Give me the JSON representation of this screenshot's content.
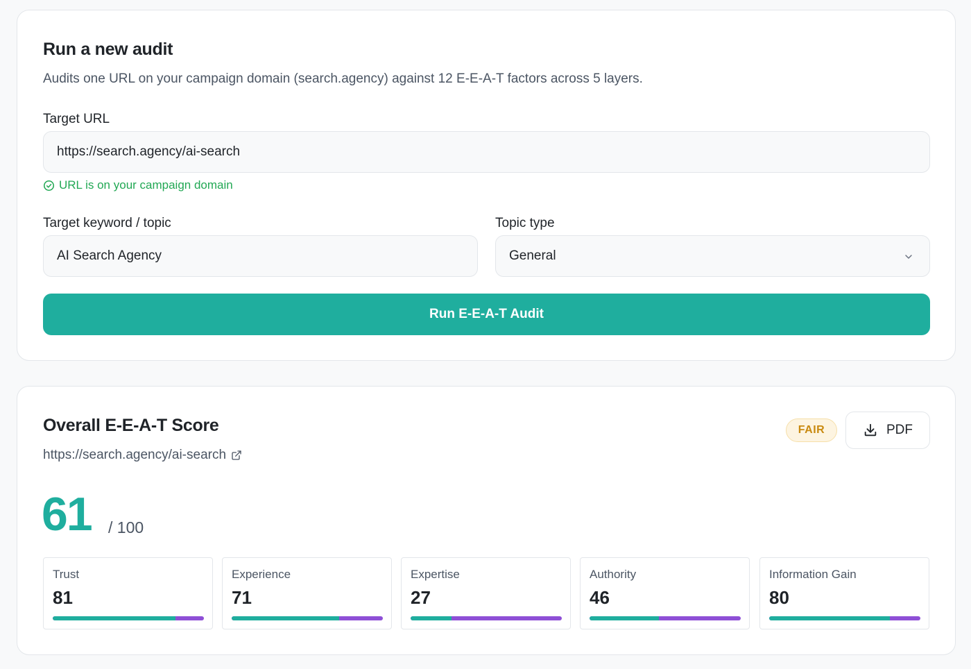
{
  "audit": {
    "title": "Run a new audit",
    "subtitle": "Audits one URL on your campaign domain (search.agency) against 12 E-E-A-T factors across 5 layers.",
    "target_url_label": "Target URL",
    "target_url_value": "https://search.agency/ai-search",
    "url_status": "URL is on your campaign domain",
    "keyword_label": "Target keyword / topic",
    "keyword_value": "AI Search Agency",
    "topic_type_label": "Topic type",
    "topic_type_value": "General",
    "run_button": "Run E-E-A-T Audit"
  },
  "score": {
    "title": "Overall E-E-A-T Score",
    "url": "https://search.agency/ai-search",
    "badge": "FAIR",
    "pdf_label": "PDF",
    "overall": "61",
    "max": "/ 100",
    "metrics": [
      {
        "label": "Trust",
        "value": "81",
        "fraction": 0.81
      },
      {
        "label": "Experience",
        "value": "71",
        "fraction": 0.71
      },
      {
        "label": "Expertise",
        "value": "27",
        "fraction": 0.27
      },
      {
        "label": "Authority",
        "value": "46",
        "fraction": 0.46
      },
      {
        "label": "Information Gain",
        "value": "80",
        "fraction": 0.8
      }
    ]
  },
  "colors": {
    "accent": "#1fae9e",
    "bar_remainder": "#8e4fd6",
    "success": "#22a854",
    "badge_text": "#c98a10"
  },
  "icons": {
    "url_status": "check-circle-icon",
    "topic_dropdown": "chevron-down-icon",
    "pdf": "download-icon",
    "url_external": "external-link-icon"
  }
}
